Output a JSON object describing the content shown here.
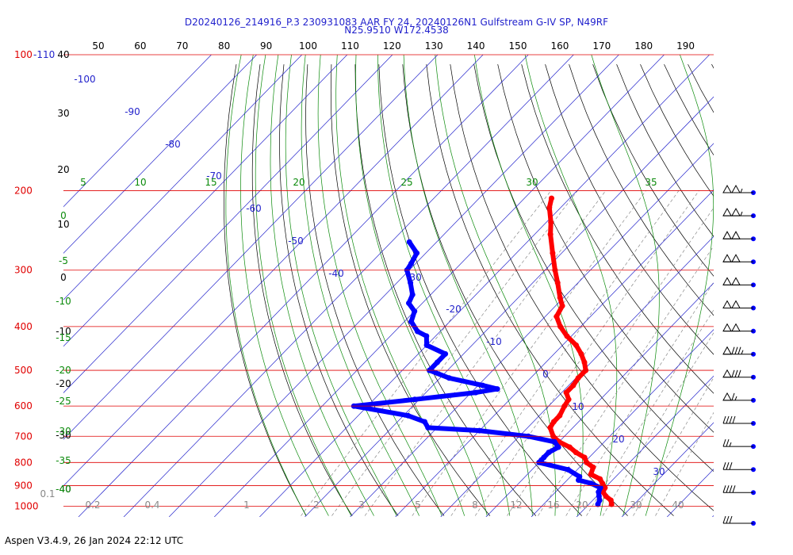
{
  "header": {
    "line1": "D20240126_214916_P.3 230931083 AAR FY 24, 20240126N1 Gulfstream G-IV SP, N49RF",
    "line2": "N25.9510 W172.4538"
  },
  "footer": "Aspen V3.4.9, 26 Jan 2024  22:12 UTC",
  "chart_data": {
    "type": "line",
    "title": "D20240126_214916_P.3 230931083 AAR FY 24, 20240126N1 Gulfstream G-IV SP, N49RF",
    "pressure_levels": [
      100,
      200,
      300,
      400,
      500,
      600,
      700,
      800,
      900,
      1000
    ],
    "pressure_labels": [
      "100",
      "200",
      "300",
      "400",
      "500",
      "600",
      "700",
      "800",
      "900",
      "1000"
    ],
    "pressure_top_annot": "-110",
    "top_ticks": [
      "50",
      "60",
      "70",
      "80",
      "90",
      "100",
      "110",
      "120",
      "130",
      "140",
      "150",
      "160",
      "170",
      "180",
      "190"
    ],
    "left_axis_labels": [
      "40",
      "30",
      "20",
      "10",
      "0",
      "-10",
      "-20",
      "-30",
      "-40"
    ],
    "isotherm_labels": [
      "-100",
      "-90",
      "-80",
      "-70",
      "-60",
      "-50",
      "-40",
      "-30",
      "-20",
      "-10",
      "0",
      "10",
      "20",
      "30"
    ],
    "theta_e_labels": [
      "5",
      "10",
      "15",
      "20",
      "25",
      "30",
      "35"
    ],
    "green_left_labels": [
      "0",
      "-5",
      "-10",
      "-15",
      "-20",
      "-25",
      "-30",
      "-35",
      "-40"
    ],
    "mixing_ratio_labels": [
      "0.1",
      "0.2",
      "0.4",
      "1",
      "2",
      "3",
      "5",
      "8",
      "12",
      "16",
      "20",
      "30",
      "40"
    ],
    "series": [
      {
        "points": [
          [
            208,
            -54
          ],
          [
            218,
            -52.5
          ],
          [
            235,
            -49
          ],
          [
            250,
            -46.5
          ],
          [
            275,
            -42
          ],
          [
            300,
            -37.8
          ],
          [
            320,
            -34.5
          ],
          [
            345,
            -30.8
          ],
          [
            360,
            -28.5
          ],
          [
            380,
            -27.5
          ],
          [
            400,
            -24.5
          ],
          [
            420,
            -21
          ],
          [
            440,
            -17
          ],
          [
            460,
            -14
          ],
          [
            480,
            -11.5
          ],
          [
            500,
            -9.5
          ],
          [
            520,
            -9.5
          ],
          [
            540,
            -9
          ],
          [
            560,
            -9
          ],
          [
            580,
            -7
          ],
          [
            600,
            -6.5
          ],
          [
            630,
            -5.5
          ],
          [
            650,
            -5.5
          ],
          [
            670,
            -5
          ],
          [
            700,
            -2.5
          ],
          [
            720,
            0
          ],
          [
            740,
            3.5
          ],
          [
            760,
            6
          ],
          [
            780,
            9
          ],
          [
            800,
            10.5
          ],
          [
            820,
            13
          ],
          [
            850,
            14
          ],
          [
            870,
            17
          ],
          [
            890,
            18.5
          ],
          [
            910,
            20
          ],
          [
            930,
            20.5
          ],
          [
            950,
            22
          ],
          [
            970,
            24
          ],
          [
            990,
            25
          ]
        ]
      },
      {
        "points": [
          [
            260,
            -76
          ],
          [
            275,
            -72
          ],
          [
            290,
            -71
          ],
          [
            300,
            -70.5
          ],
          [
            320,
            -67
          ],
          [
            340,
            -64
          ],
          [
            355,
            -63
          ],
          [
            370,
            -60
          ],
          [
            390,
            -58.5
          ],
          [
            410,
            -55
          ],
          [
            420,
            -52
          ],
          [
            440,
            -50
          ],
          [
            460,
            -44
          ],
          [
            480,
            -44
          ],
          [
            500,
            -44
          ],
          [
            520,
            -38
          ],
          [
            540,
            -29
          ],
          [
            550,
            -25
          ],
          [
            560,
            -29
          ],
          [
            580,
            -41
          ],
          [
            600,
            -53
          ],
          [
            630,
            -39
          ],
          [
            650,
            -34
          ],
          [
            670,
            -32
          ],
          [
            680,
            -20
          ],
          [
            700,
            -8
          ],
          [
            720,
            -1
          ],
          [
            740,
            1
          ],
          [
            760,
            0
          ],
          [
            780,
            0
          ],
          [
            790,
            0
          ],
          [
            800,
            0
          ],
          [
            830,
            8
          ],
          [
            860,
            12
          ],
          [
            875,
            12.5
          ],
          [
            890,
            16
          ],
          [
            910,
            19
          ],
          [
            930,
            19.5
          ],
          [
            950,
            20.5
          ],
          [
            970,
            21.5
          ],
          [
            990,
            22
          ]
        ]
      }
    ],
    "wind_barbs": [
      {
        "p": 200,
        "kts": 105
      },
      {
        "p": 230,
        "kts": 105
      },
      {
        "p": 260,
        "kts": 100
      },
      {
        "p": 290,
        "kts": 100
      },
      {
        "p": 320,
        "kts": 100
      },
      {
        "p": 350,
        "kts": 100
      },
      {
        "p": 380,
        "kts": 100
      },
      {
        "p": 410,
        "kts": 85
      },
      {
        "p": 440,
        "kts": 80
      },
      {
        "p": 470,
        "kts": 65
      },
      {
        "p": 500,
        "kts": 40
      },
      {
        "p": 530,
        "kts": 25
      },
      {
        "p": 560,
        "kts": 30
      },
      {
        "p": 590,
        "kts": 40
      },
      {
        "p": 620,
        "kts": 30
      }
    ]
  }
}
